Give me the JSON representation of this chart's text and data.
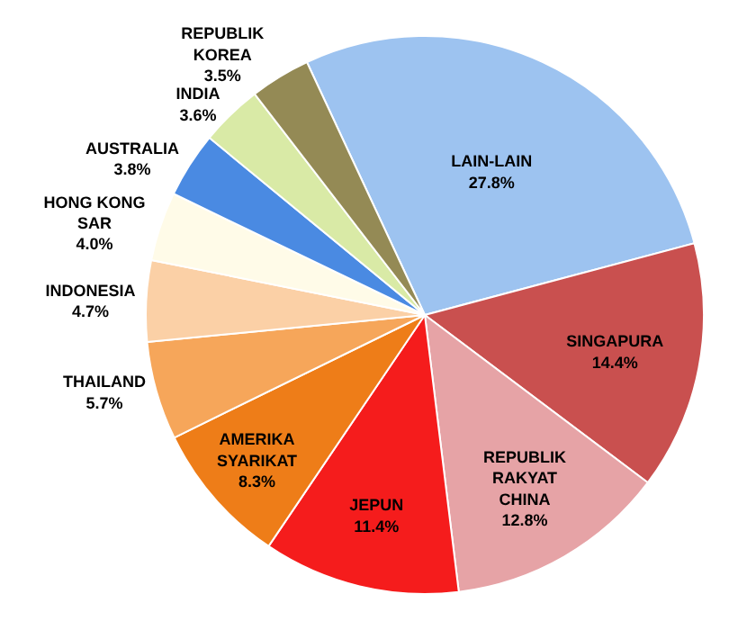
{
  "chart_data": {
    "type": "pie",
    "categories": [
      "LAIN-LAIN",
      "SINGAPURA",
      "REPUBLIK RAKYAT CHINA",
      "JEPUN",
      "AMERIKA SYARIKAT",
      "THAILAND",
      "INDONESIA",
      "HONG KONG SAR",
      "AUSTRALIA",
      "INDIA",
      "REPUBLIK KOREA"
    ],
    "values": [
      27.8,
      14.4,
      12.8,
      11.4,
      8.3,
      5.7,
      4.7,
      4.0,
      3.8,
      3.6,
      3.5
    ],
    "colors": [
      "#9dc3f0",
      "#c9504f",
      "#e6a3a6",
      "#f51c1c",
      "#ee7d18",
      "#f6a65a",
      "#fbd0a6",
      "#fffbe8",
      "#4a8ae2",
      "#d9eaa6",
      "#948a55"
    ],
    "value_labels": [
      "27.8%",
      "14.4%",
      "12.8%",
      "11.4%",
      "8.3%",
      "5.7%",
      "4.7%",
      "4.0%",
      "3.8%",
      "3.6%",
      "3.5%"
    ]
  }
}
